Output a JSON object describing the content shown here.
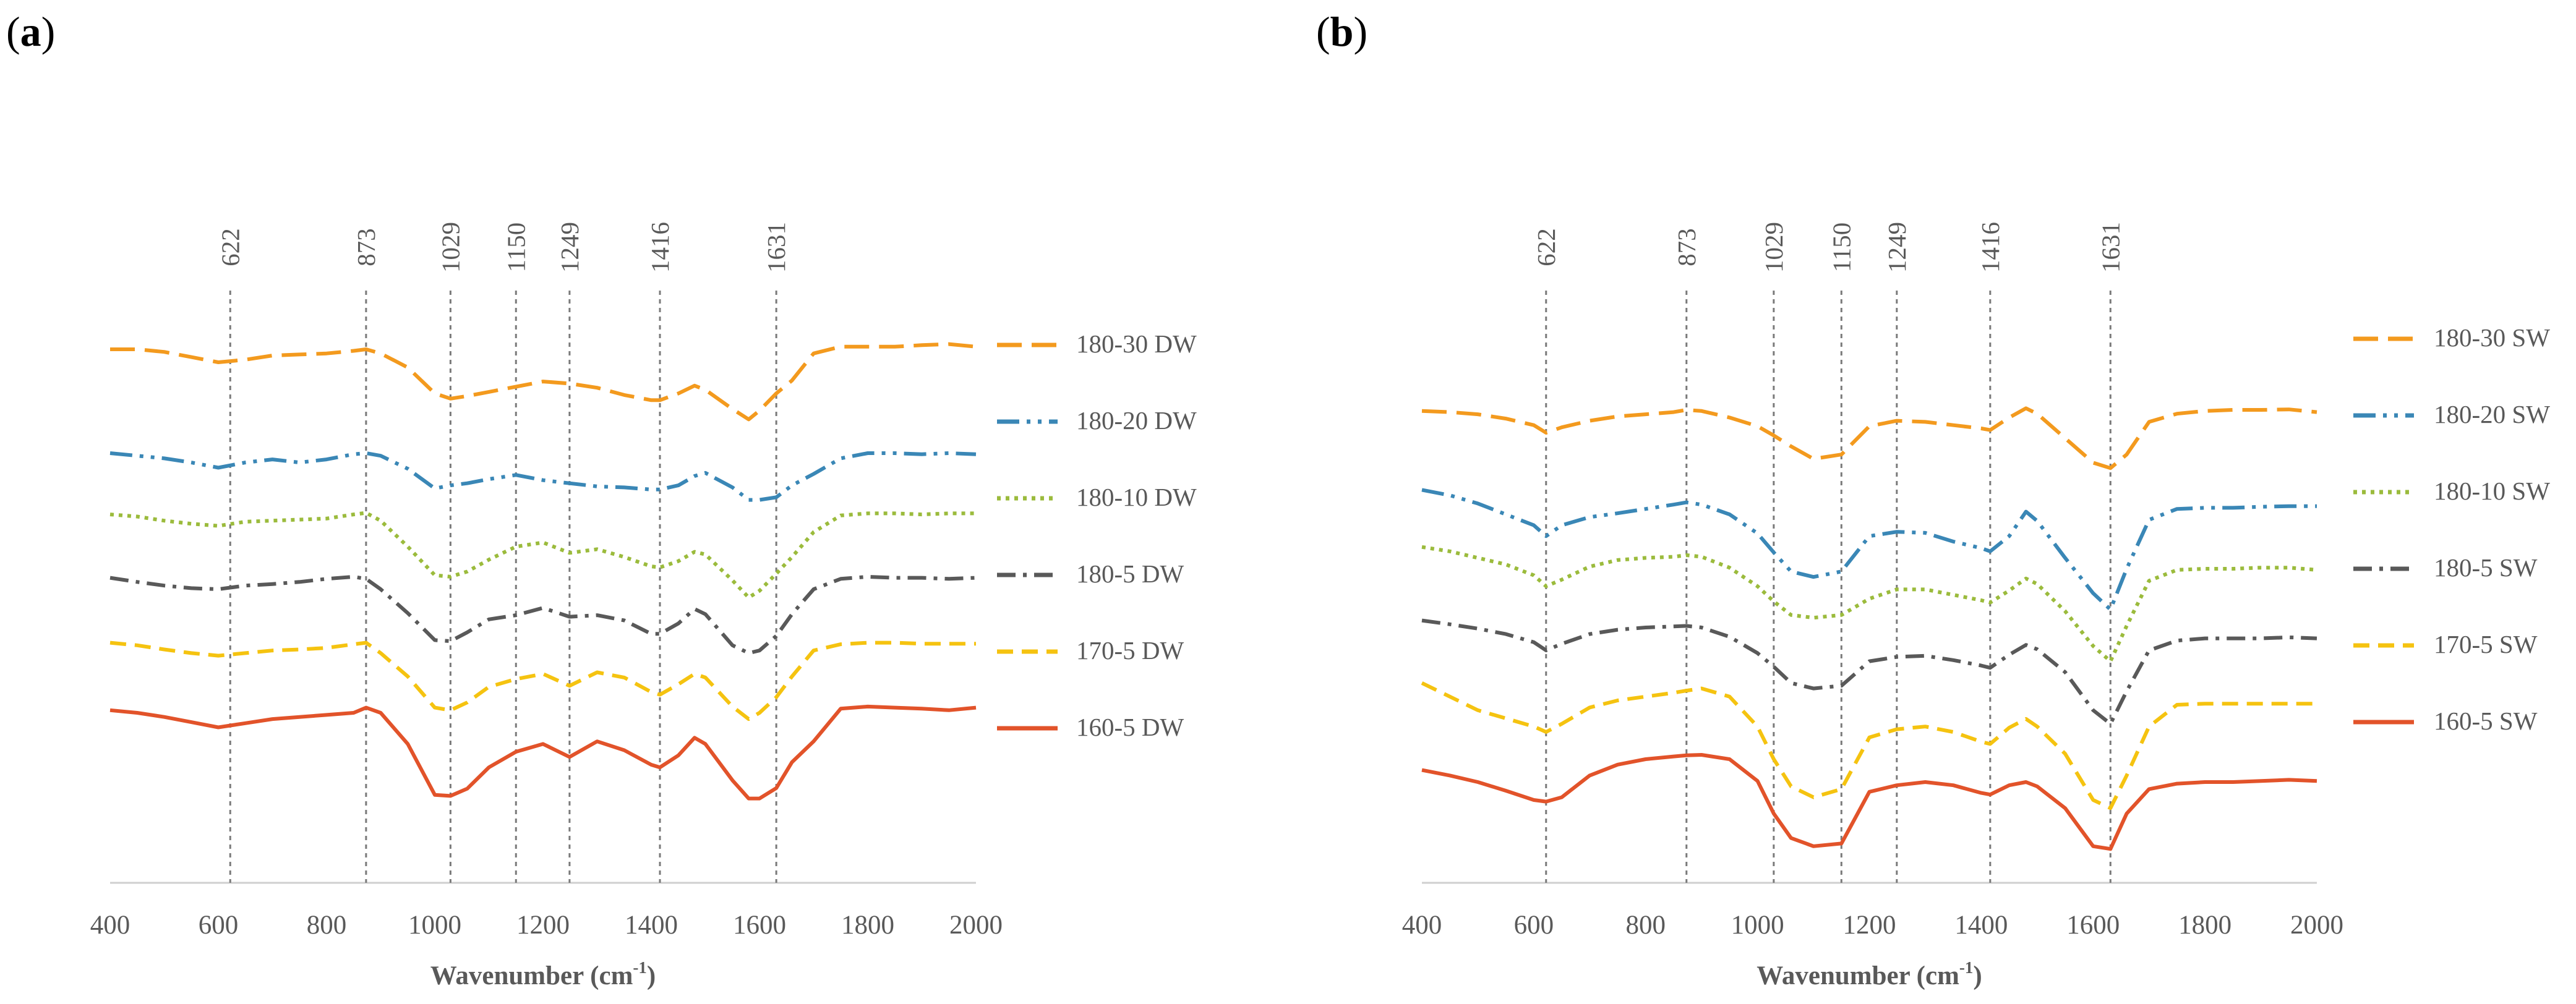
{
  "figure": {
    "panels": [
      "a",
      "b"
    ]
  },
  "chart_data": [
    {
      "panel": "a",
      "type": "line",
      "title": "",
      "xlabel": "Wavenumber (cm-1)",
      "xlabel_main": "Wavenumber (cm",
      "xlabel_sup": "-1",
      "xlabel_end": ")",
      "ylabel": "",
      "xlim": [
        400,
        2000
      ],
      "xticks": [
        400,
        600,
        800,
        1000,
        1200,
        1400,
        1600,
        1800,
        2000
      ],
      "reference_lines": [
        622,
        873,
        1029,
        1150,
        1249,
        1416,
        1631
      ],
      "y_axis_values": "none",
      "series": [
        {
          "name": "180-30 DW",
          "color": "#F39A1E",
          "dash": "long-dash",
          "x": [
            400,
            450,
            500,
            550,
            600,
            650,
            700,
            750,
            800,
            850,
            873,
            900,
            950,
            1000,
            1029,
            1060,
            1100,
            1150,
            1200,
            1249,
            1300,
            1350,
            1400,
            1416,
            1450,
            1480,
            1500,
            1550,
            1580,
            1600,
            1631,
            1660,
            1700,
            1750,
            1800,
            1850,
            1900,
            1950,
            2000
          ],
          "y": [
            0,
            0,
            5,
            15,
            25,
            20,
            12,
            10,
            8,
            3,
            0,
            8,
            35,
            85,
            95,
            90,
            82,
            72,
            62,
            66,
            74,
            88,
            98,
            98,
            85,
            70,
            78,
            115,
            135,
            118,
            85,
            60,
            8,
            -5,
            -5,
            -5,
            -8,
            -10,
            -5
          ]
        },
        {
          "name": "180-20 DW",
          "color": "#3A87B6",
          "dash": "dash-dot-dot",
          "x": [
            400,
            450,
            500,
            550,
            600,
            650,
            700,
            750,
            800,
            850,
            873,
            900,
            950,
            1000,
            1029,
            1060,
            1100,
            1150,
            1200,
            1249,
            1300,
            1350,
            1400,
            1416,
            1450,
            1480,
            1500,
            1550,
            1580,
            1600,
            1631,
            1660,
            1700,
            1750,
            1800,
            1850,
            1900,
            1950,
            2000
          ],
          "y": [
            200,
            205,
            210,
            218,
            228,
            218,
            212,
            218,
            212,
            202,
            200,
            205,
            230,
            268,
            262,
            258,
            250,
            242,
            252,
            258,
            264,
            266,
            270,
            270,
            262,
            244,
            238,
            266,
            290,
            290,
            285,
            262,
            240,
            210,
            200,
            200,
            202,
            200,
            202
          ]
        },
        {
          "name": "180-10 DW",
          "color": "#9BBB3C",
          "dash": "dot",
          "x": [
            400,
            450,
            500,
            550,
            600,
            650,
            700,
            750,
            800,
            850,
            873,
            900,
            950,
            1000,
            1029,
            1060,
            1100,
            1150,
            1200,
            1249,
            1300,
            1350,
            1400,
            1416,
            1450,
            1480,
            1500,
            1550,
            1580,
            1600,
            1631,
            1660,
            1700,
            1750,
            1800,
            1850,
            1900,
            1950,
            2000
          ],
          "y": [
            318,
            322,
            330,
            336,
            340,
            332,
            330,
            328,
            326,
            318,
            315,
            330,
            380,
            435,
            438,
            428,
            405,
            380,
            372,
            392,
            385,
            400,
            418,
            420,
            408,
            390,
            395,
            445,
            478,
            465,
            432,
            400,
            352,
            320,
            316,
            316,
            318,
            316,
            316
          ]
        },
        {
          "name": "180-5 DW",
          "color": "#595959",
          "dash": "dash-dot",
          "x": [
            400,
            450,
            500,
            550,
            600,
            650,
            700,
            750,
            800,
            850,
            873,
            900,
            950,
            1000,
            1029,
            1060,
            1100,
            1150,
            1200,
            1249,
            1300,
            1350,
            1400,
            1416,
            1450,
            1480,
            1500,
            1550,
            1580,
            1600,
            1631,
            1660,
            1700,
            1750,
            1800,
            1850,
            1900,
            1950,
            2000
          ],
          "y": [
            440,
            448,
            455,
            460,
            462,
            455,
            452,
            448,
            442,
            438,
            442,
            462,
            508,
            560,
            562,
            545,
            520,
            512,
            498,
            515,
            512,
            522,
            548,
            548,
            528,
            500,
            510,
            570,
            585,
            580,
            552,
            510,
            462,
            442,
            438,
            440,
            440,
            442,
            440
          ]
        },
        {
          "name": "170-5 DW",
          "color": "#F5C310",
          "dash": "dash",
          "x": [
            400,
            450,
            500,
            550,
            600,
            650,
            700,
            750,
            800,
            850,
            873,
            900,
            950,
            1000,
            1029,
            1060,
            1100,
            1150,
            1200,
            1249,
            1300,
            1350,
            1400,
            1416,
            1450,
            1480,
            1500,
            1550,
            1580,
            1600,
            1631,
            1660,
            1700,
            1750,
            1800,
            1850,
            1900,
            1950,
            2000
          ],
          "y": [
            565,
            570,
            578,
            585,
            590,
            585,
            580,
            578,
            575,
            568,
            565,
            585,
            630,
            690,
            695,
            680,
            650,
            635,
            625,
            648,
            622,
            632,
            660,
            665,
            645,
            625,
            632,
            688,
            712,
            700,
            670,
            630,
            580,
            568,
            565,
            565,
            567,
            567,
            567
          ]
        },
        {
          "name": "160-5 DW",
          "color": "#E2532A",
          "dash": "solid",
          "x": [
            400,
            450,
            500,
            550,
            600,
            650,
            700,
            750,
            800,
            850,
            873,
            900,
            950,
            1000,
            1029,
            1060,
            1100,
            1150,
            1200,
            1249,
            1300,
            1350,
            1400,
            1416,
            1450,
            1480,
            1500,
            1550,
            1580,
            1600,
            1631,
            1660,
            1700,
            1750,
            1800,
            1850,
            1900,
            1950,
            2000
          ],
          "y": [
            695,
            700,
            708,
            718,
            728,
            720,
            712,
            708,
            704,
            700,
            690,
            700,
            760,
            858,
            860,
            846,
            805,
            775,
            760,
            785,
            755,
            772,
            800,
            805,
            782,
            748,
            760,
            830,
            865,
            865,
            845,
            795,
            755,
            692,
            688,
            690,
            692,
            695,
            690
          ]
        }
      ]
    },
    {
      "panel": "b",
      "type": "line",
      "title": "",
      "xlabel": "Wavenumber (cm-1)",
      "xlabel_main": "Wavenumber (cm",
      "xlabel_sup": "-1",
      "xlabel_end": ")",
      "ylabel": "",
      "xlim": [
        400,
        2000
      ],
      "xticks": [
        400,
        600,
        800,
        1000,
        1200,
        1400,
        1600,
        1800,
        2000
      ],
      "reference_lines": [
        622,
        873,
        1029,
        1150,
        1249,
        1416,
        1631
      ],
      "y_axis_values": "none",
      "series": [
        {
          "name": "180-30 SW",
          "color": "#F39A1E",
          "dash": "long-dash",
          "x": [
            400,
            450,
            500,
            550,
            600,
            622,
            650,
            700,
            750,
            800,
            850,
            873,
            900,
            950,
            1000,
            1029,
            1060,
            1100,
            1150,
            1200,
            1249,
            1300,
            1350,
            1400,
            1416,
            1450,
            1480,
            1500,
            1550,
            1600,
            1631,
            1660,
            1700,
            1750,
            1800,
            1850,
            1900,
            1950,
            2000
          ],
          "y": [
            60,
            62,
            66,
            74,
            86,
            100,
            90,
            78,
            70,
            66,
            62,
            58,
            60,
            72,
            88,
            105,
            125,
            148,
            140,
            88,
            78,
            80,
            86,
            92,
            95,
            72,
            55,
            65,
            110,
            155,
            165,
            140,
            80,
            65,
            60,
            58,
            58,
            57,
            62
          ]
        },
        {
          "name": "180-20 SW",
          "color": "#3A87B6",
          "dash": "dash-dot-dot",
          "x": [
            400,
            450,
            500,
            550,
            600,
            622,
            650,
            700,
            750,
            800,
            850,
            873,
            900,
            950,
            1000,
            1029,
            1060,
            1100,
            1150,
            1200,
            1249,
            1300,
            1350,
            1400,
            1416,
            1450,
            1480,
            1500,
            1550,
            1600,
            1631,
            1660,
            1700,
            1750,
            1800,
            1850,
            1900,
            1950,
            2000
          ],
          "y": [
            205,
            215,
            230,
            250,
            270,
            290,
            270,
            255,
            248,
            240,
            232,
            228,
            232,
            250,
            285,
            320,
            355,
            365,
            355,
            290,
            282,
            284,
            300,
            312,
            318,
            290,
            245,
            262,
            330,
            395,
            425,
            350,
            260,
            240,
            238,
            238,
            236,
            235,
            235
          ]
        },
        {
          "name": "180-10 SW",
          "color": "#9BBB3C",
          "dash": "dot",
          "x": [
            400,
            450,
            500,
            550,
            600,
            622,
            650,
            700,
            750,
            800,
            850,
            873,
            900,
            950,
            1000,
            1029,
            1060,
            1100,
            1150,
            1200,
            1249,
            1300,
            1350,
            1400,
            1416,
            1450,
            1480,
            1500,
            1550,
            1600,
            1631,
            1660,
            1700,
            1750,
            1800,
            1850,
            1900,
            1950,
            2000
          ],
          "y": [
            310,
            318,
            330,
            342,
            362,
            382,
            370,
            346,
            334,
            330,
            328,
            325,
            328,
            348,
            382,
            410,
            435,
            440,
            435,
            405,
            388,
            388,
            398,
            408,
            412,
            390,
            368,
            378,
            428,
            492,
            520,
            455,
            372,
            352,
            350,
            350,
            348,
            348,
            352
          ]
        },
        {
          "name": "180-5 SW",
          "color": "#595959",
          "dash": "dash-dot",
          "x": [
            400,
            450,
            500,
            550,
            600,
            622,
            650,
            700,
            750,
            800,
            850,
            873,
            900,
            950,
            1000,
            1029,
            1060,
            1100,
            1150,
            1200,
            1249,
            1300,
            1350,
            1400,
            1416,
            1450,
            1480,
            1500,
            1550,
            1600,
            1631,
            1660,
            1700,
            1750,
            1800,
            1850,
            1900,
            1950,
            2000
          ],
          "y": [
            445,
            452,
            460,
            470,
            485,
            500,
            488,
            470,
            462,
            458,
            456,
            455,
            458,
            475,
            505,
            530,
            560,
            570,
            565,
            520,
            512,
            510,
            518,
            528,
            532,
            508,
            490,
            498,
            540,
            610,
            635,
            575,
            500,
            482,
            478,
            478,
            478,
            476,
            478
          ]
        },
        {
          "name": "170-5 SW",
          "color": "#F5C310",
          "dash": "dash",
          "x": [
            400,
            450,
            500,
            550,
            600,
            622,
            650,
            700,
            750,
            800,
            850,
            873,
            900,
            950,
            1000,
            1029,
            1060,
            1100,
            1150,
            1200,
            1249,
            1300,
            1350,
            1400,
            1416,
            1450,
            1480,
            1500,
            1550,
            1600,
            1631,
            1660,
            1700,
            1750,
            1800,
            1850,
            1900,
            1950,
            2000
          ],
          "y": [
            560,
            585,
            610,
            625,
            640,
            650,
            635,
            605,
            592,
            585,
            578,
            574,
            570,
            585,
            640,
            700,
            750,
            770,
            755,
            660,
            645,
            640,
            650,
            668,
            672,
            642,
            626,
            640,
            690,
            775,
            790,
            730,
            640,
            600,
            598,
            598,
            598,
            598,
            598
          ]
        },
        {
          "name": "160-5 SW",
          "color": "#E2532A",
          "dash": "solid",
          "x": [
            400,
            450,
            500,
            550,
            600,
            622,
            650,
            700,
            750,
            800,
            850,
            873,
            900,
            950,
            1000,
            1029,
            1060,
            1100,
            1150,
            1200,
            1249,
            1300,
            1350,
            1400,
            1416,
            1450,
            1480,
            1500,
            1550,
            1600,
            1631,
            1660,
            1700,
            1750,
            1800,
            1850,
            1900,
            1950,
            2000
          ],
          "y": [
            720,
            730,
            742,
            758,
            775,
            778,
            770,
            730,
            710,
            700,
            695,
            693,
            692,
            700,
            740,
            800,
            845,
            860,
            855,
            760,
            748,
            742,
            748,
            762,
            765,
            748,
            742,
            750,
            790,
            860,
            865,
            800,
            755,
            745,
            742,
            742,
            740,
            738,
            740
          ]
        }
      ]
    }
  ]
}
